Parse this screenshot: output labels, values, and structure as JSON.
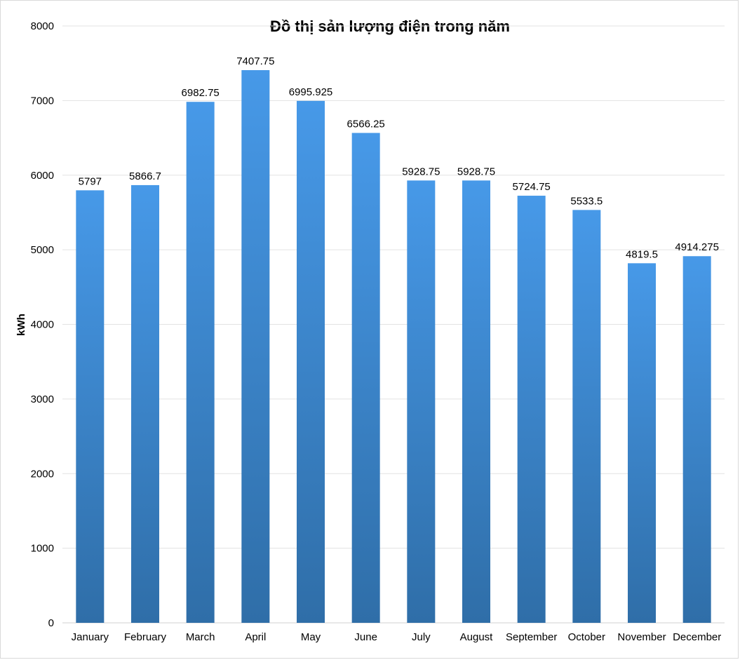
{
  "chart_data": {
    "type": "bar",
    "title": "Đồ thị sản lượng điện trong năm",
    "xlabel": "",
    "ylabel": "kWh",
    "categories": [
      "January",
      "February",
      "March",
      "April",
      "May",
      "June",
      "July",
      "August",
      "September",
      "October",
      "November",
      "December"
    ],
    "values": [
      5797,
      5866.7,
      6982.75,
      7407.75,
      6995.925,
      6566.25,
      5928.75,
      5928.75,
      5724.75,
      5533.5,
      4819.5,
      4914.275
    ],
    "data_labels": [
      "5797",
      "5866.7",
      "6982.75",
      "7407.75",
      "6995.925",
      "6566.25",
      "5928.75",
      "5928.75",
      "5724.75",
      "5533.5",
      "4819.5",
      "4914.275"
    ],
    "ylim": [
      0,
      8000
    ],
    "yticks": [
      "0",
      "1000",
      "2000",
      "3000",
      "4000",
      "5000",
      "6000",
      "7000",
      "8000"
    ],
    "grid": true,
    "legend": "none",
    "colors": {
      "bar_top": "#4799e8",
      "bar_bottom": "#2f6ea8",
      "grid": "#e3e3e3"
    }
  }
}
